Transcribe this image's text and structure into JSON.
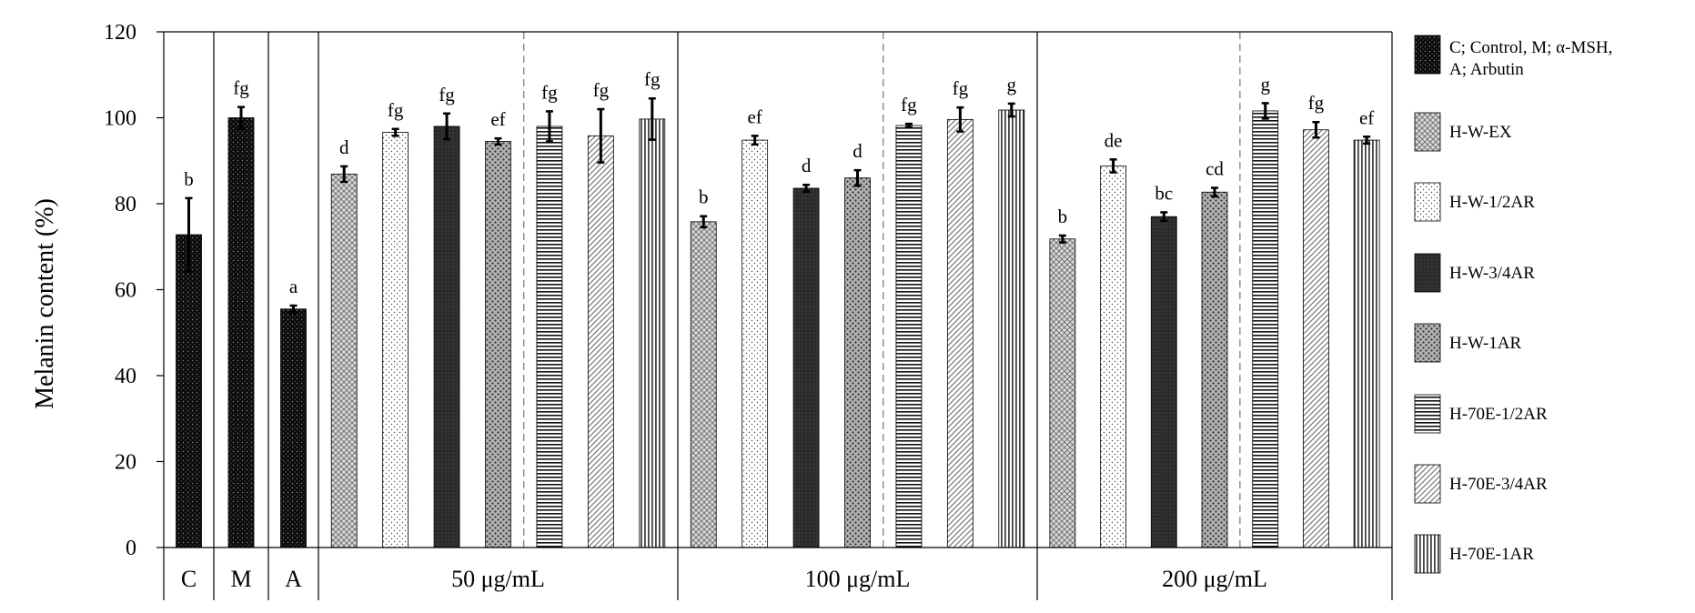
{
  "chart_data": {
    "type": "bar",
    "ylabel": "Melanin content (%)",
    "ylim": [
      0,
      120
    ],
    "yticks": [
      0,
      20,
      40,
      60,
      80,
      100,
      120
    ],
    "grid": false,
    "legend_position": "right",
    "groups": [
      {
        "label": "C",
        "bars": 1
      },
      {
        "label": "M",
        "bars": 1
      },
      {
        "label": "A",
        "bars": 1
      },
      {
        "label": "50 μg/mL",
        "bars": 7
      },
      {
        "label": "100 μg/mL",
        "bars": 7
      },
      {
        "label": "200 μg/mL",
        "bars": 7
      }
    ],
    "legend": [
      {
        "label": "C; Control, M; α-MSH, A; Arbutin",
        "pattern": "dots-dark"
      },
      {
        "label": "H-W-EX",
        "pattern": "crosshatch"
      },
      {
        "label": "H-W-1/2AR",
        "pattern": "dots-light"
      },
      {
        "label": "H-W-3/4AR",
        "pattern": "dense-dark"
      },
      {
        "label": "H-W-1AR",
        "pattern": "dots-gray"
      },
      {
        "label": "H-70E-1/2AR",
        "pattern": "horizontal"
      },
      {
        "label": "H-70E-3/4AR",
        "pattern": "diagonal"
      },
      {
        "label": "H-70E-1AR",
        "pattern": "vertical"
      }
    ],
    "bars": [
      {
        "group": "C",
        "series": "C; Control, M; α-MSH, A; Arbutin",
        "value": 72.8,
        "error": 8.5,
        "letter": "b",
        "pattern": "dots-dark"
      },
      {
        "group": "M",
        "series": "C; Control, M; α-MSH, A; Arbutin",
        "value": 100,
        "error": 2.5,
        "letter": "fg",
        "pattern": "dots-dark"
      },
      {
        "group": "A",
        "series": "C; Control, M; α-MSH, A; Arbutin",
        "value": 55.5,
        "error": 0.8,
        "letter": "a",
        "pattern": "dots-dark"
      },
      {
        "group": "50 μg/mL",
        "series": "H-W-EX",
        "value": 86.9,
        "error": 1.8,
        "letter": "d",
        "pattern": "crosshatch"
      },
      {
        "group": "50 μg/mL",
        "series": "H-W-1/2AR",
        "value": 96.6,
        "error": 0.8,
        "letter": "fg",
        "pattern": "dots-light"
      },
      {
        "group": "50 μg/mL",
        "series": "H-W-3/4AR",
        "value": 98.0,
        "error": 3.0,
        "letter": "fg",
        "pattern": "dense-dark"
      },
      {
        "group": "50 μg/mL",
        "series": "H-W-1AR",
        "value": 94.5,
        "error": 0.7,
        "letter": "ef",
        "pattern": "dots-gray"
      },
      {
        "group": "50 μg/mL",
        "series": "H-70E-1/2AR",
        "value": 98.0,
        "error": 3.5,
        "letter": "fg",
        "pattern": "horizontal"
      },
      {
        "group": "50 μg/mL",
        "series": "H-70E-3/4AR",
        "value": 95.8,
        "error": 6.2,
        "letter": "fg",
        "pattern": "diagonal"
      },
      {
        "group": "50 μg/mL",
        "series": "H-70E-1AR",
        "value": 99.7,
        "error": 4.8,
        "letter": "fg",
        "pattern": "vertical"
      },
      {
        "group": "100 μg/mL",
        "series": "H-W-EX",
        "value": 75.8,
        "error": 1.3,
        "letter": "b",
        "pattern": "crosshatch"
      },
      {
        "group": "100 μg/mL",
        "series": "H-W-1/2AR",
        "value": 94.8,
        "error": 1.0,
        "letter": "ef",
        "pattern": "dots-light"
      },
      {
        "group": "100 μg/mL",
        "series": "H-W-3/4AR",
        "value": 83.6,
        "error": 0.8,
        "letter": "d",
        "pattern": "dense-dark"
      },
      {
        "group": "100 μg/mL",
        "series": "H-W-1AR",
        "value": 86.0,
        "error": 1.8,
        "letter": "d",
        "pattern": "dots-gray"
      },
      {
        "group": "100 μg/mL",
        "series": "H-70E-1/2AR",
        "value": 98.2,
        "error": 0.4,
        "letter": "fg",
        "pattern": "horizontal"
      },
      {
        "group": "100 μg/mL",
        "series": "H-70E-3/4AR",
        "value": 99.6,
        "error": 2.8,
        "letter": "fg",
        "pattern": "diagonal"
      },
      {
        "group": "100 μg/mL",
        "series": "H-70E-1AR",
        "value": 101.8,
        "error": 1.5,
        "letter": "g",
        "pattern": "vertical"
      },
      {
        "group": "200 μg/mL",
        "series": "H-W-EX",
        "value": 71.8,
        "error": 0.8,
        "letter": "b",
        "pattern": "crosshatch"
      },
      {
        "group": "200 μg/mL",
        "series": "H-W-1/2AR",
        "value": 88.8,
        "error": 1.5,
        "letter": "de",
        "pattern": "dots-light"
      },
      {
        "group": "200 μg/mL",
        "series": "H-W-3/4AR",
        "value": 77.0,
        "error": 1.0,
        "letter": "bc",
        "pattern": "dense-dark"
      },
      {
        "group": "200 μg/mL",
        "series": "H-W-1AR",
        "value": 82.7,
        "error": 1.0,
        "letter": "cd",
        "pattern": "dots-gray"
      },
      {
        "group": "200 μg/mL",
        "series": "H-70E-1/2AR",
        "value": 101.6,
        "error": 1.8,
        "letter": "g",
        "pattern": "horizontal"
      },
      {
        "group": "200 μg/mL",
        "series": "H-70E-3/4AR",
        "value": 97.2,
        "error": 1.8,
        "letter": "fg",
        "pattern": "diagonal"
      },
      {
        "group": "200 μg/mL",
        "series": "H-70E-1AR",
        "value": 94.8,
        "error": 0.8,
        "letter": "ef",
        "pattern": "vertical"
      }
    ],
    "colors": {
      "axis": "#000000",
      "divider": "#808080",
      "bar_outline": "#000000"
    }
  }
}
